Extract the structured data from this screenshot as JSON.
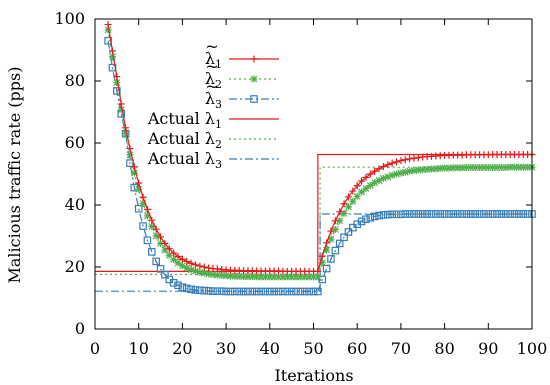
{
  "chart_data": {
    "type": "line",
    "xlabel": "Iterations",
    "ylabel": "Malicious traffic rate (pps)",
    "xlim": [
      0,
      100
    ],
    "ylim": [
      0,
      100
    ],
    "x_ticks": [
      "0",
      "10",
      "20",
      "30",
      "40",
      "50",
      "60",
      "70",
      "80",
      "90",
      "100"
    ],
    "y_ticks": [
      "0",
      "20",
      "40",
      "60",
      "80",
      "100"
    ],
    "legend_position": "top-right inside",
    "legend": [
      {
        "base": "λ",
        "tilde": true,
        "sub": "1",
        "prefix": "",
        "series_index": 0
      },
      {
        "base": "λ",
        "tilde": true,
        "sub": "2",
        "prefix": "",
        "series_index": 1
      },
      {
        "base": "λ",
        "tilde": true,
        "sub": "3",
        "prefix": "",
        "series_index": 2
      },
      {
        "base": "λ",
        "tilde": false,
        "sub": "1",
        "prefix": "Actual ",
        "series_index": 3
      },
      {
        "base": "λ",
        "tilde": false,
        "sub": "2",
        "prefix": "Actual ",
        "series_index": 4
      },
      {
        "base": "λ",
        "tilde": false,
        "sub": "3",
        "prefix": "Actual ",
        "series_index": 5
      }
    ],
    "series": [
      {
        "style": "solid-plus",
        "color": "#e41a1c",
        "x": [
          3,
          4,
          5,
          6,
          7,
          8,
          9,
          10,
          11,
          12,
          13,
          14,
          15,
          16,
          17,
          18,
          19,
          20,
          21,
          22,
          23,
          24,
          25,
          26,
          27,
          28,
          29,
          30,
          31,
          32,
          33,
          34,
          35,
          36,
          37,
          38,
          39,
          40,
          41,
          42,
          43,
          44,
          45,
          46,
          47,
          48,
          49,
          50,
          51,
          52,
          53,
          54,
          55,
          56,
          57,
          58,
          59,
          60,
          61,
          62,
          63,
          64,
          65,
          66,
          67,
          68,
          69,
          70,
          71,
          72,
          73,
          74,
          75,
          76,
          77,
          78,
          79,
          80,
          81,
          82,
          83,
          84,
          85,
          86,
          87,
          88,
          89,
          90,
          91,
          92,
          93,
          94,
          95,
          96,
          97,
          98,
          99,
          100
        ],
        "y": [
          98.2,
          89.7,
          81.4,
          72.6,
          64.9,
          58.2,
          52.3,
          47.1,
          42.5,
          38.6,
          35.1,
          32.2,
          29.7,
          27.6,
          25.9,
          24.5,
          23.4,
          22.5,
          21.8,
          21.2,
          20.7,
          20.3,
          20.0,
          19.7,
          19.5,
          19.4,
          19.2,
          19.1,
          19.0,
          18.9,
          18.9,
          18.8,
          18.8,
          18.8,
          18.7,
          18.7,
          18.7,
          18.7,
          18.7,
          18.7,
          18.6,
          18.6,
          18.6,
          18.6,
          18.6,
          18.6,
          18.6,
          18.6,
          18.6,
          23.5,
          27.8,
          31.6,
          34.9,
          37.8,
          40.4,
          42.6,
          44.5,
          46.2,
          47.7,
          48.9,
          50.0,
          50.9,
          51.7,
          52.4,
          53.0,
          53.5,
          53.9,
          54.3,
          54.6,
          54.9,
          55.1,
          55.3,
          55.5,
          55.6,
          55.7,
          55.8,
          55.9,
          56.0,
          56.0,
          56.1,
          56.1,
          56.1,
          56.2,
          56.2,
          56.2,
          56.2,
          56.2,
          56.2,
          56.3,
          56.3,
          56.3,
          56.3,
          56.3,
          56.3,
          56.3,
          56.3,
          56.3,
          56.3
        ]
      },
      {
        "style": "dotted-x",
        "color": "#4daf4a",
        "x": [
          3,
          4,
          5,
          6,
          7,
          8,
          9,
          10,
          11,
          12,
          13,
          14,
          15,
          16,
          17,
          18,
          19,
          20,
          21,
          22,
          23,
          24,
          25,
          26,
          27,
          28,
          29,
          30,
          31,
          32,
          33,
          34,
          35,
          36,
          37,
          38,
          39,
          40,
          41,
          42,
          43,
          44,
          45,
          46,
          47,
          48,
          49,
          50,
          51,
          52,
          53,
          54,
          55,
          56,
          57,
          58,
          59,
          60,
          61,
          62,
          63,
          64,
          65,
          66,
          67,
          68,
          69,
          70,
          71,
          72,
          73,
          74,
          75,
          76,
          77,
          78,
          79,
          80,
          81,
          82,
          83,
          84,
          85,
          86,
          87,
          88,
          89,
          90,
          91,
          92,
          93,
          94,
          95,
          96,
          97,
          98,
          99,
          100
        ],
        "y": [
          96.5,
          87.9,
          79.5,
          70.7,
          63.0,
          56.2,
          50.3,
          45.1,
          40.5,
          36.5,
          33.1,
          30.1,
          27.6,
          25.5,
          23.8,
          22.4,
          21.3,
          20.4,
          19.7,
          19.1,
          18.7,
          18.3,
          18.0,
          17.8,
          17.6,
          17.4,
          17.3,
          17.2,
          17.1,
          17.0,
          17.0,
          16.9,
          16.9,
          16.9,
          16.8,
          16.8,
          16.8,
          16.8,
          16.8,
          16.8,
          16.8,
          16.8,
          16.8,
          16.8,
          16.8,
          16.8,
          16.8,
          16.8,
          16.8,
          21.4,
          25.5,
          29.0,
          32.1,
          34.9,
          37.3,
          39.4,
          41.2,
          42.8,
          44.2,
          45.3,
          46.3,
          47.2,
          47.9,
          48.6,
          49.1,
          49.6,
          50.0,
          50.3,
          50.6,
          50.9,
          51.1,
          51.3,
          51.4,
          51.5,
          51.6,
          51.7,
          51.8,
          51.9,
          51.9,
          52.0,
          52.0,
          52.0,
          52.1,
          52.1,
          52.1,
          52.1,
          52.1,
          52.1,
          52.1,
          52.1,
          52.1,
          52.1,
          52.2,
          52.2,
          52.2,
          52.2,
          52.2,
          52.2
        ]
      },
      {
        "style": "dashdot-square",
        "color": "#377eb8",
        "x": [
          3,
          4,
          5,
          6,
          7,
          8,
          9,
          10,
          11,
          12,
          13,
          14,
          15,
          16,
          17,
          18,
          19,
          20,
          21,
          22,
          23,
          24,
          25,
          26,
          27,
          28,
          29,
          30,
          31,
          32,
          33,
          34,
          35,
          36,
          37,
          38,
          39,
          40,
          41,
          42,
          43,
          44,
          45,
          46,
          47,
          48,
          49,
          50,
          51,
          52,
          53,
          54,
          55,
          56,
          57,
          58,
          59,
          60,
          61,
          62,
          63,
          64,
          65,
          66,
          67,
          68,
          69,
          70,
          71,
          72,
          73,
          74,
          75,
          76,
          77,
          78,
          79,
          80,
          81,
          82,
          83,
          84,
          85,
          86,
          87,
          88,
          89,
          90,
          91,
          92,
          93,
          94,
          95,
          96,
          97,
          98,
          99,
          100
        ],
        "y": [
          93.0,
          84.3,
          76.8,
          69.4,
          63.0,
          53.5,
          45.6,
          38.8,
          33.2,
          28.6,
          24.9,
          21.8,
          19.4,
          17.5,
          16.0,
          14.9,
          14.1,
          13.5,
          13.1,
          12.8,
          12.6,
          12.5,
          12.4,
          12.3,
          12.2,
          12.2,
          12.2,
          12.1,
          12.1,
          12.1,
          12.1,
          12.1,
          12.1,
          12.1,
          12.1,
          12.1,
          12.1,
          12.1,
          12.1,
          12.1,
          12.1,
          12.1,
          12.1,
          12.1,
          12.1,
          12.1,
          12.1,
          12.1,
          12.1,
          16.0,
          19.5,
          22.6,
          25.3,
          27.6,
          29.6,
          31.3,
          32.7,
          33.8,
          34.7,
          35.4,
          35.9,
          36.3,
          36.6,
          36.8,
          36.9,
          37.0,
          37.0,
          37.0,
          37.1,
          37.1,
          37.1,
          37.1,
          37.1,
          37.1,
          37.1,
          37.1,
          37.1,
          37.1,
          37.1,
          37.1,
          37.1,
          37.1,
          37.1,
          37.1,
          37.1,
          37.1,
          37.1,
          37.1,
          37.1,
          37.1,
          37.1,
          37.1,
          37.1,
          37.1,
          37.1,
          37.1,
          37.1,
          37.1
        ]
      },
      {
        "style": "solid",
        "color": "#e41a1c",
        "x": [
          0,
          50,
          50,
          51,
          51,
          100
        ],
        "y": [
          18.6,
          18.6,
          18.6,
          18.6,
          56.3,
          56.3
        ]
      },
      {
        "style": "dotted",
        "color": "#4daf4a",
        "x": [
          0,
          51,
          51,
          51.5,
          51.5,
          100
        ],
        "y": [
          17.6,
          17.6,
          17.6,
          17.6,
          52.2,
          52.2
        ]
      },
      {
        "style": "dashdot",
        "color": "#377eb8",
        "x": [
          0,
          50.5,
          50.5,
          51.5,
          51.5,
          100
        ],
        "y": [
          12.2,
          12.2,
          12.2,
          12.2,
          37.1,
          37.1
        ]
      }
    ]
  }
}
